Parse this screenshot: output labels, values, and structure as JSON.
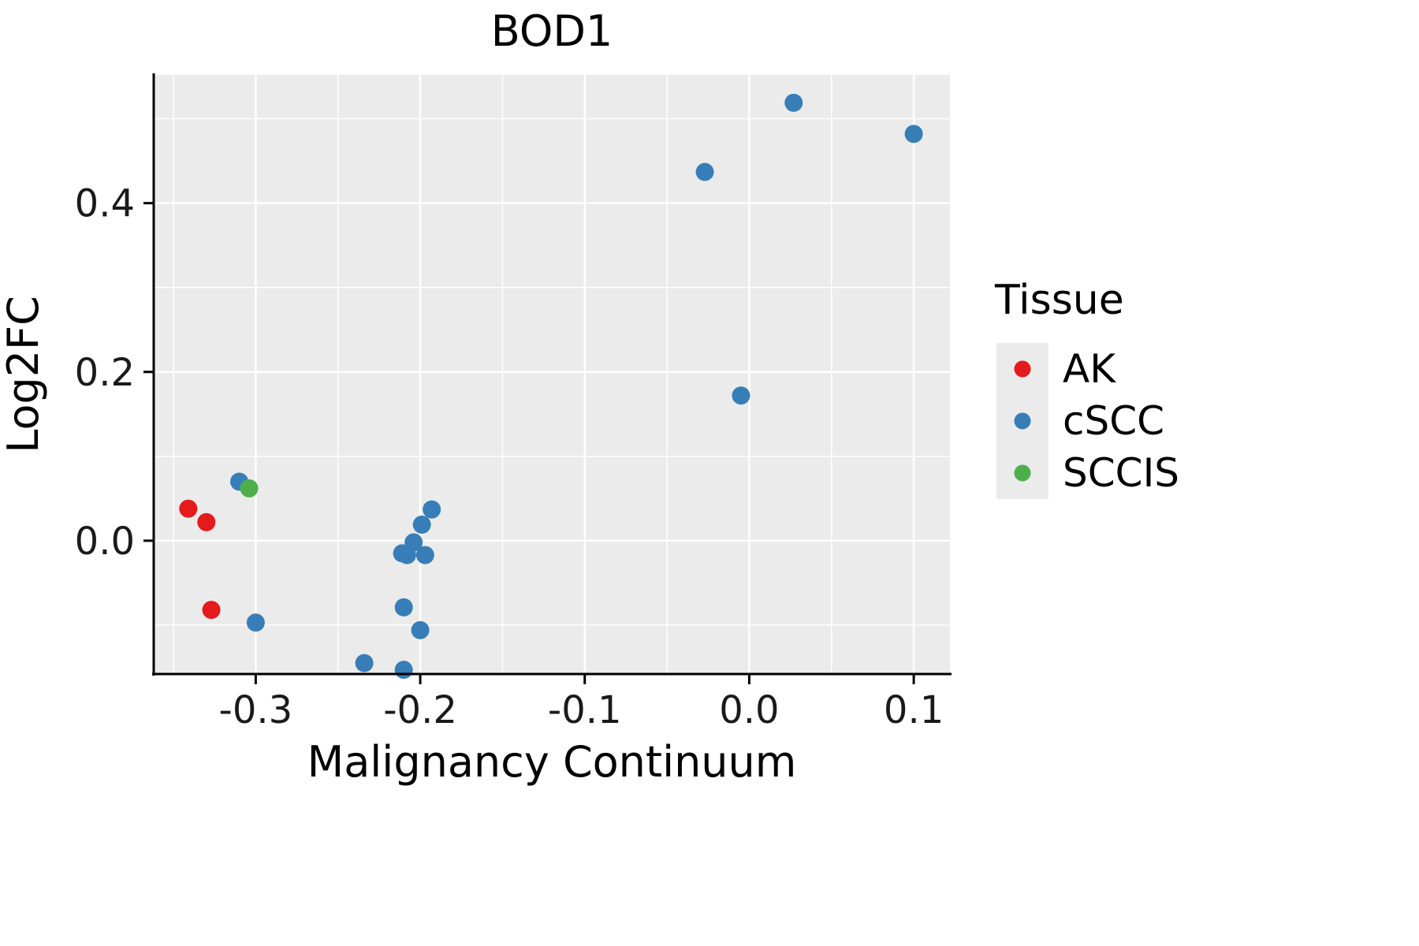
{
  "chart_data": {
    "type": "scatter",
    "title": "BOD1",
    "xlabel": "Malignancy Continuum",
    "ylabel": "Log2FC",
    "xlim": [
      -0.362,
      0.122
    ],
    "ylim": [
      -0.158,
      0.552
    ],
    "x_ticks": [
      -0.3,
      -0.2,
      -0.1,
      0.0,
      0.1
    ],
    "x_tick_labels": [
      "-0.3",
      "-0.2",
      "-0.1",
      "0.0",
      "0.1"
    ],
    "y_ticks": [
      0.0,
      0.2,
      0.4
    ],
    "y_tick_labels": [
      "0.0",
      "0.2",
      "0.4"
    ],
    "x_minor_ticks": [
      -0.35,
      -0.25,
      -0.15,
      -0.05,
      0.05
    ],
    "y_minor_ticks": [
      -0.1,
      0.1,
      0.3,
      0.5
    ],
    "grid": true,
    "panel_color": "#EBEBEB",
    "grid_color": "#FFFFFF",
    "legend_position": "right",
    "legend": {
      "title": "Tissue",
      "entries": [
        {
          "label": "AK",
          "color": "#E41A1C"
        },
        {
          "label": "cSCC",
          "color": "#377EB8"
        },
        {
          "label": "SCCIS",
          "color": "#4DAF4A"
        }
      ]
    },
    "series": [
      {
        "name": "AK",
        "color": "#E41A1C",
        "points": [
          [
            -0.341,
            0.038
          ],
          [
            -0.33,
            0.022
          ],
          [
            -0.327,
            -0.082
          ]
        ]
      },
      {
        "name": "cSCC",
        "color": "#377EB8",
        "points": [
          [
            -0.31,
            0.07
          ],
          [
            -0.3,
            -0.097
          ],
          [
            -0.234,
            -0.145
          ],
          [
            -0.211,
            -0.015
          ],
          [
            -0.208,
            -0.017
          ],
          [
            -0.21,
            -0.079
          ],
          [
            -0.204,
            -0.002
          ],
          [
            -0.199,
            0.019
          ],
          [
            -0.197,
            -0.017
          ],
          [
            -0.193,
            0.037
          ],
          [
            -0.2,
            -0.106
          ],
          [
            -0.21,
            -0.153
          ],
          [
            -0.027,
            0.437
          ],
          [
            0.027,
            0.519
          ],
          [
            0.1,
            0.482
          ],
          [
            -0.005,
            0.172
          ]
        ]
      },
      {
        "name": "SCCIS",
        "color": "#4DAF4A",
        "points": [
          [
            -0.304,
            0.062
          ]
        ]
      }
    ]
  }
}
